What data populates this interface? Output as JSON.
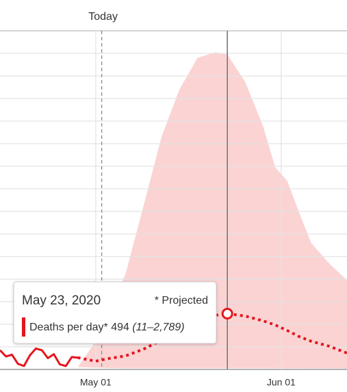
{
  "chart_data": {
    "type": "line",
    "x": [
      "2020-04-15",
      "2020-04-16",
      "2020-04-17",
      "2020-04-18",
      "2020-04-19",
      "2020-04-20",
      "2020-04-21",
      "2020-04-22",
      "2020-04-23",
      "2020-04-24",
      "2020-04-25",
      "2020-04-26",
      "2020-04-27",
      "2020-04-28",
      "2020-05-01",
      "2020-05-03",
      "2020-05-06",
      "2020-05-09",
      "2020-05-12",
      "2020-05-15",
      "2020-05-18",
      "2020-05-21",
      "2020-05-23",
      "2020-05-26",
      "2020-05-29",
      "2020-05-31",
      "2020-06-02",
      "2020-06-04",
      "2020-06-06",
      "2020-06-09",
      "2020-06-12"
    ],
    "series": [
      {
        "color": "#e4161d",
        "style": "solid",
        "values": [
          170,
          115,
          130,
          50,
          30,
          125,
          185,
          170,
          100,
          135,
          45,
          30,
          110,
          105,
          null,
          null,
          null,
          null,
          null,
          null,
          null,
          null,
          null,
          null,
          null,
          null,
          null,
          null,
          null,
          null,
          null
        ]
      },
      {
        "color": "#e4161d",
        "style": "dotted",
        "values": [
          null,
          null,
          null,
          null,
          null,
          null,
          null,
          null,
          null,
          null,
          null,
          null,
          null,
          105,
          73,
          95,
          120,
          180,
          260,
          320,
          420,
          480,
          494,
          473,
          430,
          394,
          345,
          291,
          250,
          206,
          145
        ]
      }
    ],
    "band": {
      "color": "#fbd3d3",
      "upper": [
        null,
        null,
        null,
        null,
        null,
        null,
        null,
        null,
        null,
        null,
        null,
        null,
        null,
        20,
        250,
        480,
        850,
        1450,
        2060,
        2480,
        2760,
        2810,
        2789,
        2545,
        2150,
        1790,
        1670,
        1390,
        1120,
        940,
        790
      ],
      "lower": [
        null,
        null,
        null,
        null,
        null,
        null,
        null,
        null,
        null,
        null,
        null,
        null,
        null,
        20,
        15,
        12,
        11,
        11,
        11,
        11,
        11,
        11,
        11,
        11,
        11,
        10,
        10,
        10,
        9,
        9,
        8
      ]
    },
    "xlim": [
      "2020-04-15",
      "2020-06-12"
    ],
    "xticks": [
      {
        "value": "2020-05-01",
        "label": "May 01"
      },
      {
        "value": "2020-06-01",
        "label": "Jun 01"
      }
    ],
    "ylim": [
      0,
      3000
    ],
    "yticks": [
      0,
      200,
      400,
      600,
      800,
      1000,
      1200,
      1400,
      1600,
      1800,
      2000,
      2200,
      2400,
      2600,
      2800,
      3000
    ],
    "grid": true,
    "annotations": [
      {
        "x": "2020-05-02",
        "label": "Today"
      }
    ],
    "tooltip": {
      "x": {
        "value": "2020-05-23",
        "label": "May 23, 2020"
      },
      "note": "* Projected",
      "series_label": "Deaths per day*",
      "range_label": "(11–2,789)"
    }
  }
}
